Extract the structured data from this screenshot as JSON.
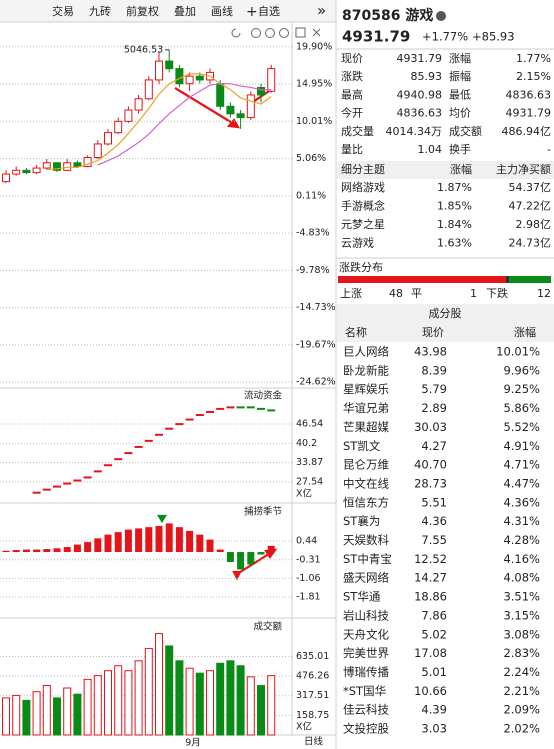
{
  "toolbar": {
    "buttons": [
      "交易",
      "九砖",
      "前复权",
      "叠加",
      "画线",
      "自选"
    ],
    "more": "»"
  },
  "main_chart": {
    "type": "candlestick",
    "peak_label": "5046.53",
    "peak_index": 16,
    "ylim": [
      -25,
      20.8
    ],
    "yticks": [
      {
        "value": 19.9,
        "label": "19.90%"
      },
      {
        "value": 14.95,
        "label": "14.95%"
      },
      {
        "value": 10.01,
        "label": "10.01%"
      },
      {
        "value": 5.06,
        "label": "5.06%"
      },
      {
        "value": 0.11,
        "label": "0.11%"
      },
      {
        "value": -4.83,
        "label": "-4.83%"
      },
      {
        "value": -9.78,
        "label": "-9.78%"
      },
      {
        "value": -14.73,
        "label": "-14.73%"
      },
      {
        "value": -19.67,
        "label": "-19.67%"
      },
      {
        "value": -24.62,
        "label": "-24.62%"
      }
    ],
    "up_color": "#e4141b",
    "down_color": "#0a8a16",
    "open": [
      2.0,
      3.0,
      3.5,
      3.2,
      3.8,
      4.5,
      3.5,
      4.5,
      4.0,
      5.2,
      7.0,
      8.5,
      10.0,
      11.5,
      13.0,
      15.5,
      18.0,
      17.0,
      15.0,
      16.0,
      15.5,
      15.0,
      12.0,
      11.0,
      10.5,
      14.5,
      14.0
    ],
    "close": [
      3.0,
      3.5,
      3.2,
      3.8,
      4.5,
      3.5,
      4.5,
      4.0,
      5.2,
      7.0,
      8.5,
      10.0,
      11.5,
      13.0,
      15.5,
      18.0,
      17.0,
      15.0,
      16.0,
      15.5,
      16.5,
      12.0,
      11.0,
      10.5,
      13.5,
      13.5,
      17.0
    ],
    "high": [
      3.5,
      4.0,
      3.8,
      4.2,
      5.0,
      4.6,
      5.0,
      4.8,
      5.5,
      7.5,
      9.0,
      10.5,
      12.0,
      13.5,
      16.0,
      19.3,
      19.5,
      17.5,
      16.5,
      16.5,
      17.0,
      15.5,
      12.5,
      11.5,
      14.0,
      15.0,
      17.5
    ],
    "low": [
      1.8,
      2.8,
      3.0,
      3.0,
      3.6,
      3.3,
      3.4,
      3.8,
      3.9,
      5.0,
      6.8,
      8.3,
      9.8,
      11.0,
      12.8,
      15.0,
      16.5,
      14.5,
      14.0,
      15.0,
      15.0,
      11.5,
      10.5,
      9.0,
      10.2,
      12.5,
      13.8
    ],
    "ma": [
      {
        "color": "#f0a020",
        "values": [
          null,
          null,
          null,
          null,
          3.6,
          3.7,
          3.9,
          3.9,
          4.3,
          4.8,
          5.8,
          6.9,
          8.4,
          10.0,
          11.7,
          13.6,
          15.0,
          15.7,
          16.3,
          16.3,
          16.0,
          15.0,
          14.2,
          13.1,
          12.7,
          12.3,
          13.3
        ]
      },
      {
        "color": "#d860c8",
        "values": [
          null,
          null,
          null,
          null,
          null,
          null,
          null,
          null,
          null,
          4.2,
          4.8,
          5.4,
          6.3,
          7.2,
          8.3,
          9.7,
          11.0,
          12.1,
          13.2,
          14.0,
          14.8,
          15.0,
          15.0,
          14.7,
          14.5,
          14.2,
          14.2
        ]
      }
    ]
  },
  "flow_panel": {
    "type": "step-line",
    "title": "流动资金",
    "unit": "X亿",
    "ylim": [
      21.6,
      57.7
    ],
    "yticks": [
      46.54,
      40.2,
      33.87,
      27.54
    ],
    "values": [
      null,
      null,
      null,
      24,
      25,
      26,
      27,
      28,
      29,
      31,
      33,
      35,
      37,
      39,
      41,
      43,
      45,
      46.5,
      48,
      49.5,
      50.5,
      51.5,
      52,
      52,
      52,
      51.5,
      51
    ]
  },
  "macd_panel": {
    "type": "bar",
    "title": "捕捞季节",
    "ylim": [
      -2.53,
      1.89
    ],
    "yticks": [
      0.44,
      -0.31,
      -1.06,
      -1.81
    ],
    "values": [
      0.05,
      0.08,
      0.1,
      0.1,
      0.12,
      0.15,
      0.2,
      0.3,
      0.4,
      0.55,
      0.7,
      0.8,
      0.9,
      0.95,
      1.0,
      1.05,
      1.15,
      1.0,
      0.85,
      0.7,
      0.5,
      0.1,
      -0.4,
      -0.7,
      -0.5,
      -0.1,
      0.25
    ]
  },
  "volume_panel": {
    "type": "bar",
    "title": "成交额",
    "unit": "X亿",
    "ylim": [
      0,
      930
    ],
    "yticks": [
      635.01,
      476.26,
      317.51,
      158.75
    ],
    "values": [
      300,
      320,
      280,
      350,
      400,
      300,
      380,
      330,
      450,
      480,
      520,
      560,
      520,
      600,
      700,
      820,
      720,
      600,
      540,
      500,
      520,
      580,
      600,
      560,
      470,
      400,
      480
    ]
  },
  "x_axis": {
    "month": "9月",
    "period": "日线"
  },
  "quote": {
    "code_name": "870586 游戏",
    "price": "4931.79",
    "change_pct": "+1.77%",
    "change": "+85.93",
    "stats": [
      [
        "现价",
        "4931.79",
        "涨幅",
        "1.77%"
      ],
      [
        "涨跌",
        "85.93",
        "振幅",
        "2.15%"
      ],
      [
        "最高",
        "4940.98",
        "最低",
        "4836.63"
      ],
      [
        "今开",
        "4836.63",
        "均价",
        "4931.79"
      ],
      [
        "成交量",
        "4014.34万",
        "成交额",
        "486.94亿"
      ],
      [
        "量比",
        "1.04",
        "换手",
        "-"
      ]
    ]
  },
  "themes": {
    "header": [
      "细分主题",
      "涨幅",
      "主力净买额"
    ],
    "rows": [
      [
        "网络游戏",
        "1.87%",
        "54.37亿"
      ],
      [
        "手游概念",
        "1.85%",
        "47.22亿"
      ],
      [
        "元梦之星",
        "1.84%",
        "2.98亿"
      ],
      [
        "云游戏",
        "1.63%",
        "24.73亿"
      ]
    ]
  },
  "distribution": {
    "title": "涨跌分布",
    "up_label": "上涨",
    "up": 48,
    "flat_label": "平",
    "flat": 1,
    "down_label": "下跌",
    "down": 12
  },
  "constituents": {
    "title": "成分股",
    "header": [
      "名称",
      "现价",
      "涨幅"
    ],
    "rows": [
      [
        "巨人网络",
        "43.98",
        "10.01%"
      ],
      [
        "卧龙新能",
        "8.39",
        "9.96%"
      ],
      [
        "星辉娱乐",
        "5.79",
        "9.25%"
      ],
      [
        "华谊兄弟",
        "2.89",
        "5.86%"
      ],
      [
        "芒果超媒",
        "30.03",
        "5.52%"
      ],
      [
        "ST凯文",
        "4.27",
        "4.91%"
      ],
      [
        "昆仑万维",
        "40.70",
        "4.71%"
      ],
      [
        "中文在线",
        "28.73",
        "4.47%"
      ],
      [
        "恒信东方",
        "5.51",
        "4.36%"
      ],
      [
        "ST襄为",
        "4.36",
        "4.31%"
      ],
      [
        "天娱数科",
        "7.55",
        "4.28%"
      ],
      [
        "ST中青宝",
        "12.52",
        "4.16%"
      ],
      [
        "盛天网络",
        "14.27",
        "4.08%"
      ],
      [
        "ST华通",
        "18.86",
        "3.51%"
      ],
      [
        "岩山科技",
        "7.86",
        "3.15%"
      ],
      [
        "天舟文化",
        "5.02",
        "3.08%"
      ],
      [
        "完美世界",
        "17.08",
        "2.83%"
      ],
      [
        "博瑞传播",
        "5.01",
        "2.24%"
      ],
      [
        "*ST国华",
        "10.66",
        "2.21%"
      ],
      [
        "佳云科技",
        "4.39",
        "2.09%"
      ],
      [
        "文投控股",
        "3.03",
        "2.02%"
      ]
    ]
  }
}
